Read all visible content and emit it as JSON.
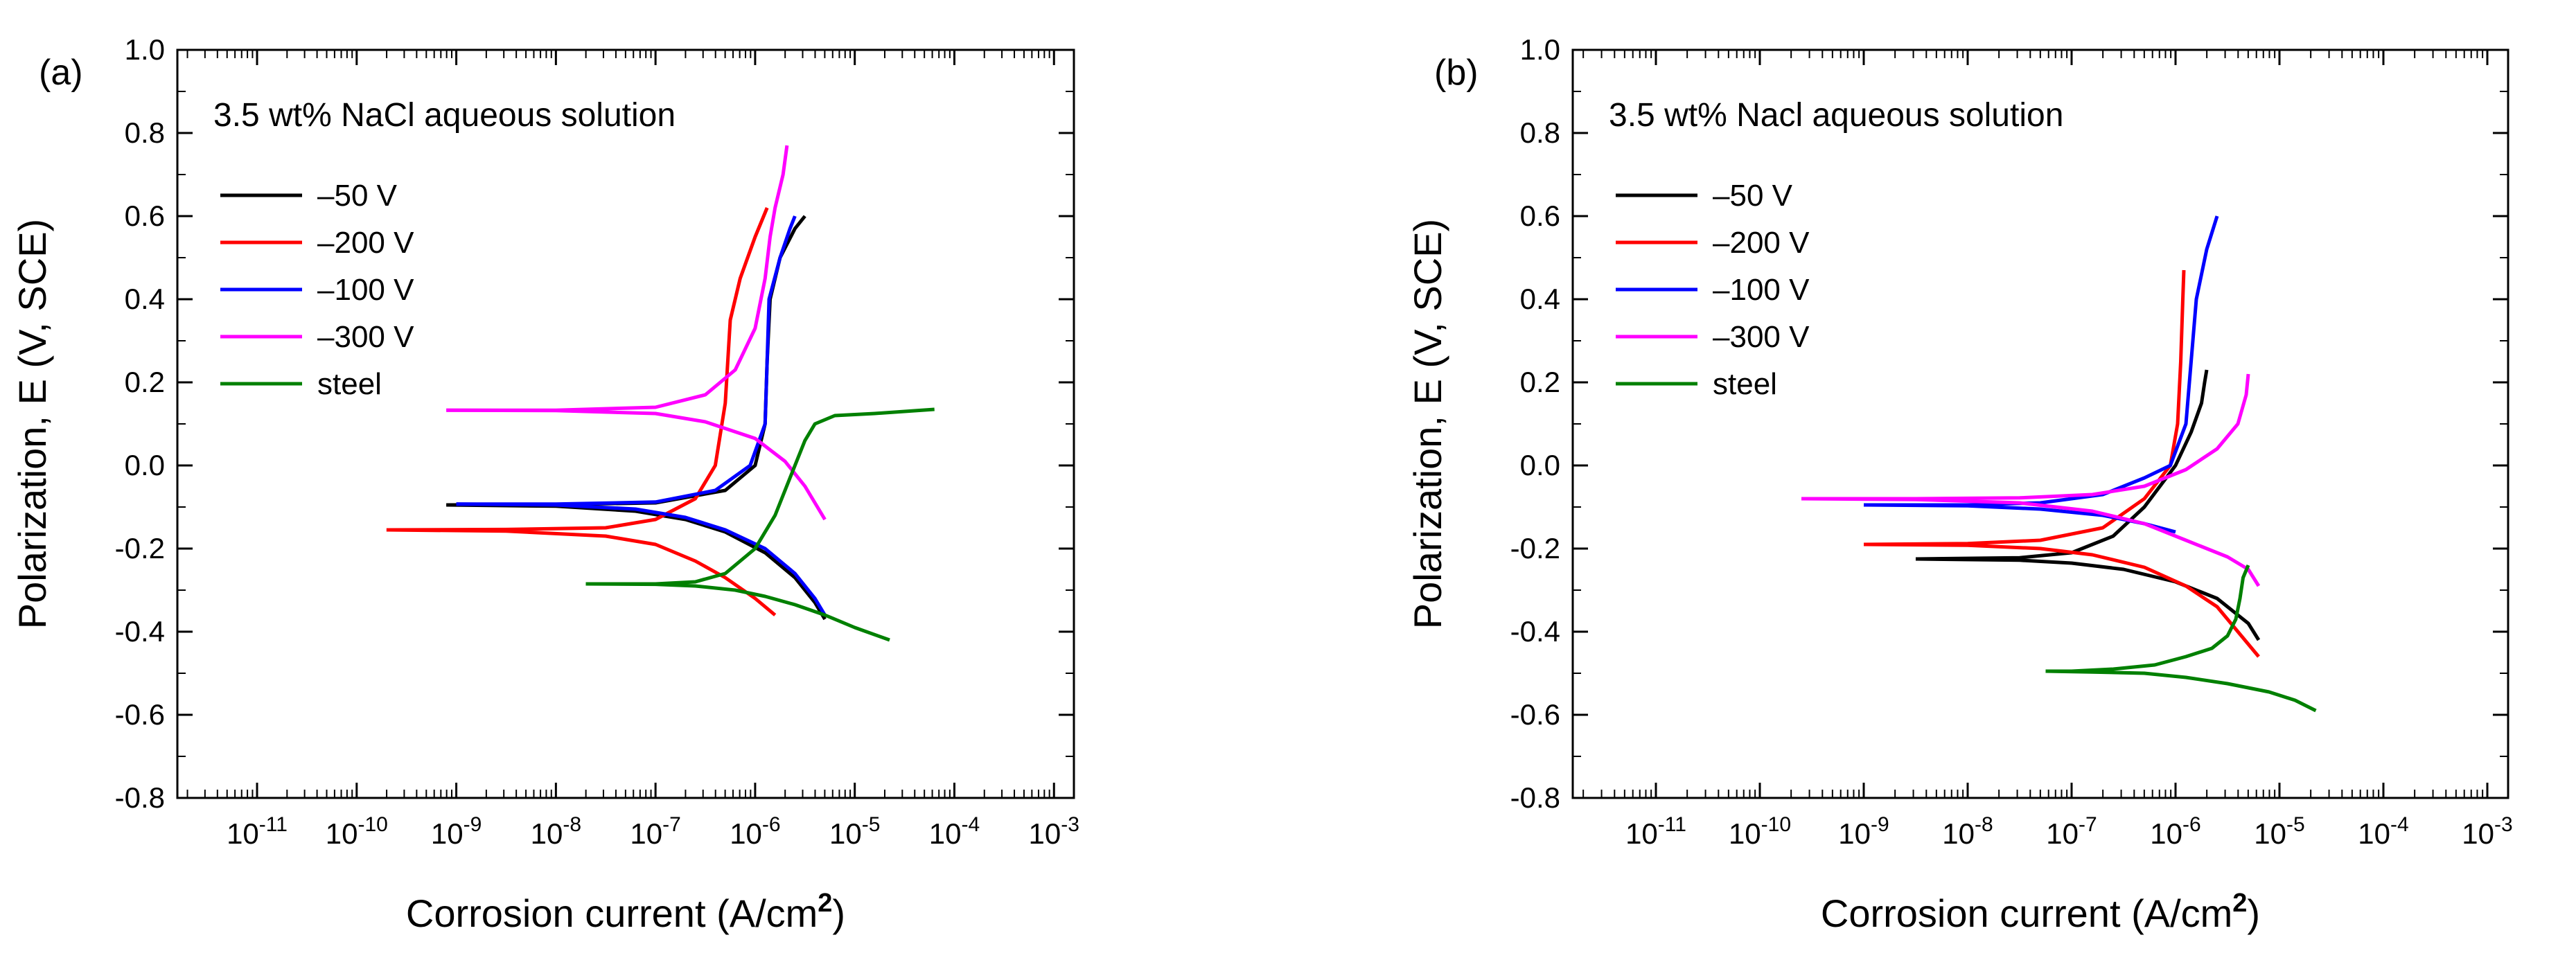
{
  "chart_data": [
    {
      "type": "line",
      "panel_label": "(a)",
      "annotation": "3.5 wt% NaCl aqueous solution",
      "xlabel": "Corrosion current (A/cm",
      "xlabel_sup": "2",
      "xlabel_close": ")",
      "ylabel": "Polarization, E (V, SCE)",
      "xscale": "log",
      "xlim_exp": [
        -11.8,
        -2.8
      ],
      "ylim": [
        -0.8,
        1.0
      ],
      "yticks": [
        "-0.8",
        "-0.6",
        "-0.4",
        "-0.2",
        "0.0",
        "0.2",
        "0.4",
        "0.6",
        "0.8",
        "1.0"
      ],
      "xtick_exps": [
        "-11",
        "-10",
        "-9",
        "-8",
        "-7",
        "-6",
        "-5",
        "-4",
        "-3"
      ],
      "legend": {
        "placement": "upper-left"
      },
      "series": [
        {
          "name": "–50 V",
          "color": "#000000",
          "log_i": [
            -9.1,
            -8,
            -7,
            -6.3,
            -6.0,
            -5.9,
            -5.88,
            -5.85,
            -5.75,
            -5.6,
            -5.5
          ],
          "E": [
            -0.095,
            -0.094,
            -0.09,
            -0.06,
            0.0,
            0.1,
            0.25,
            0.4,
            0.5,
            0.57,
            0.6
          ],
          "cath_log_i": [
            -9.1,
            -8,
            -7.2,
            -6.7,
            -6.3,
            -5.9,
            -5.6,
            -5.4,
            -5.3
          ],
          "cath_E": [
            -0.095,
            -0.098,
            -0.11,
            -0.13,
            -0.16,
            -0.21,
            -0.27,
            -0.33,
            -0.37
          ]
        },
        {
          "name": "–200 V",
          "color": "#ff0000",
          "log_i": [
            -9.7,
            -8.5,
            -7.5,
            -7.0,
            -6.6,
            -6.4,
            -6.3,
            -6.25,
            -6.15,
            -6.0,
            -5.88
          ],
          "E": [
            -0.155,
            -0.154,
            -0.15,
            -0.13,
            -0.08,
            0.0,
            0.15,
            0.35,
            0.45,
            0.55,
            0.62
          ],
          "cath_log_i": [
            -9.7,
            -8.5,
            -7.5,
            -7.0,
            -6.6,
            -6.3,
            -6.0,
            -5.8
          ],
          "cath_E": [
            -0.155,
            -0.158,
            -0.17,
            -0.19,
            -0.23,
            -0.27,
            -0.32,
            -0.36
          ]
        },
        {
          "name": "–100 V",
          "color": "#0000ff",
          "log_i": [
            -9.0,
            -8,
            -7,
            -6.4,
            -6.05,
            -5.9,
            -5.88,
            -5.86,
            -5.75,
            -5.65,
            -5.6
          ],
          "E": [
            -0.093,
            -0.093,
            -0.088,
            -0.06,
            0.0,
            0.1,
            0.25,
            0.4,
            0.5,
            0.57,
            0.6
          ],
          "cath_log_i": [
            -9.0,
            -8,
            -7.2,
            -6.7,
            -6.3,
            -5.9,
            -5.6,
            -5.4,
            -5.3
          ],
          "cath_E": [
            -0.093,
            -0.095,
            -0.105,
            -0.125,
            -0.155,
            -0.2,
            -0.26,
            -0.32,
            -0.36
          ]
        },
        {
          "name": "–300 V",
          "color": "#ff00ff",
          "log_i": [
            -9.1,
            -8,
            -7,
            -6.5,
            -6.2,
            -6.0,
            -5.9,
            -5.85,
            -5.8,
            -5.72,
            -5.68
          ],
          "E": [
            0.133,
            0.133,
            0.14,
            0.17,
            0.23,
            0.33,
            0.45,
            0.55,
            0.62,
            0.7,
            0.77
          ],
          "cath_log_i": [
            -9.1,
            -8,
            -7,
            -6.5,
            -6.0,
            -5.7,
            -5.5,
            -5.3
          ],
          "cath_E": [
            0.133,
            0.132,
            0.125,
            0.105,
            0.065,
            0.01,
            -0.05,
            -0.13
          ]
        },
        {
          "name": "steel",
          "color": "#008000",
          "log_i": [
            -7.7,
            -7,
            -6.6,
            -6.3,
            -6.0,
            -5.8,
            -5.65,
            -5.5,
            -5.4,
            -5.2,
            -4.8,
            -4.2
          ],
          "E": [
            -0.285,
            -0.285,
            -0.28,
            -0.26,
            -0.2,
            -0.12,
            -0.03,
            0.06,
            0.1,
            0.12,
            0.125,
            0.135
          ],
          "cath_log_i": [
            -7.7,
            -7,
            -6.6,
            -6.2,
            -5.9,
            -5.6,
            -5.3,
            -5.0,
            -4.65
          ],
          "cath_E": [
            -0.285,
            -0.286,
            -0.29,
            -0.3,
            -0.315,
            -0.335,
            -0.36,
            -0.39,
            -0.42
          ]
        }
      ]
    },
    {
      "type": "line",
      "panel_label": "(b)",
      "annotation": "3.5 wt% Nacl aqueous solution",
      "xlabel": "Corrosion current (A/cm",
      "xlabel_sup": "2",
      "xlabel_close": ")",
      "ylabel": "Polarization, E (V, SCE)",
      "xscale": "log",
      "xlim_exp": [
        -11.8,
        -2.8
      ],
      "ylim": [
        -0.8,
        1.0
      ],
      "yticks": [
        "-0.8",
        "-0.6",
        "-0.4",
        "-0.2",
        "0.0",
        "0.2",
        "0.4",
        "0.6",
        "0.8",
        "1.0"
      ],
      "xtick_exps": [
        "-11",
        "-10",
        "-9",
        "-8",
        "-7",
        "-6",
        "-5",
        "-4",
        "-3"
      ],
      "legend": {
        "placement": "upper-left"
      },
      "series": [
        {
          "name": "–50 V",
          "color": "#000000",
          "log_i": [
            -8.5,
            -7.5,
            -7.0,
            -6.6,
            -6.3,
            -6.0,
            -5.85,
            -5.75,
            -5.72,
            -5.7
          ],
          "E": [
            -0.225,
            -0.222,
            -0.21,
            -0.17,
            -0.1,
            0.0,
            0.08,
            0.15,
            0.2,
            0.23
          ],
          "cath_log_i": [
            -8.5,
            -7.5,
            -7.0,
            -6.5,
            -6.0,
            -5.6,
            -5.3,
            -5.2
          ],
          "cath_E": [
            -0.225,
            -0.228,
            -0.235,
            -0.25,
            -0.28,
            -0.32,
            -0.38,
            -0.42
          ]
        },
        {
          "name": "–200 V",
          "color": "#ff0000",
          "log_i": [
            -9.0,
            -8,
            -7.3,
            -6.7,
            -6.3,
            -6.05,
            -5.98,
            -5.95,
            -5.93,
            -5.92
          ],
          "E": [
            -0.19,
            -0.188,
            -0.18,
            -0.15,
            -0.08,
            0.0,
            0.1,
            0.25,
            0.4,
            0.47
          ],
          "cath_log_i": [
            -9.0,
            -8,
            -7.3,
            -6.8,
            -6.3,
            -5.9,
            -5.6,
            -5.4,
            -5.2
          ],
          "cath_E": [
            -0.19,
            -0.192,
            -0.2,
            -0.215,
            -0.245,
            -0.29,
            -0.34,
            -0.4,
            -0.46
          ]
        },
        {
          "name": "–100 V",
          "color": "#0000ff",
          "log_i": [
            -9.0,
            -8,
            -7.3,
            -6.7,
            -6.3,
            -6.05,
            -5.9,
            -5.85,
            -5.8,
            -5.7,
            -5.6
          ],
          "E": [
            -0.095,
            -0.095,
            -0.09,
            -0.07,
            -0.03,
            0.0,
            0.1,
            0.25,
            0.4,
            0.52,
            0.6
          ],
          "cath_log_i": [
            -9.0,
            -8,
            -7.3,
            -6.7,
            -6.3,
            -6.0
          ],
          "cath_E": [
            -0.095,
            -0.097,
            -0.105,
            -0.12,
            -0.14,
            -0.16
          ]
        },
        {
          "name": "–300 V",
          "color": "#ff00ff",
          "log_i": [
            -9.6,
            -8.5,
            -7.5,
            -6.8,
            -6.3,
            -5.9,
            -5.6,
            -5.4,
            -5.32,
            -5.3
          ],
          "E": [
            -0.08,
            -0.08,
            -0.078,
            -0.07,
            -0.05,
            -0.01,
            0.04,
            0.1,
            0.17,
            0.22
          ],
          "cath_log_i": [
            -9.6,
            -8.5,
            -7.5,
            -6.8,
            -6.3,
            -5.9,
            -5.5,
            -5.3,
            -5.2
          ],
          "cath_E": [
            -0.08,
            -0.082,
            -0.09,
            -0.11,
            -0.14,
            -0.18,
            -0.22,
            -0.25,
            -0.29
          ]
        },
        {
          "name": "steel",
          "color": "#008000",
          "log_i": [
            -7.25,
            -7,
            -6.6,
            -6.2,
            -5.9,
            -5.65,
            -5.5,
            -5.42,
            -5.38,
            -5.35,
            -5.3
          ],
          "E": [
            -0.495,
            -0.495,
            -0.49,
            -0.48,
            -0.46,
            -0.44,
            -0.41,
            -0.37,
            -0.32,
            -0.27,
            -0.24
          ],
          "cath_log_i": [
            -7.25,
            -6.8,
            -6.3,
            -5.9,
            -5.5,
            -5.1,
            -4.85,
            -4.65
          ],
          "cath_E": [
            -0.495,
            -0.497,
            -0.5,
            -0.51,
            -0.525,
            -0.545,
            -0.565,
            -0.59
          ]
        }
      ]
    }
  ]
}
